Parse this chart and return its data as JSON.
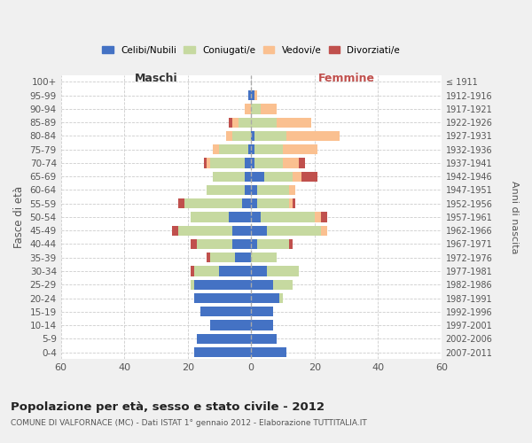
{
  "age_groups": [
    "0-4",
    "5-9",
    "10-14",
    "15-19",
    "20-24",
    "25-29",
    "30-34",
    "35-39",
    "40-44",
    "45-49",
    "50-54",
    "55-59",
    "60-64",
    "65-69",
    "70-74",
    "75-79",
    "80-84",
    "85-89",
    "90-94",
    "95-99",
    "100+"
  ],
  "birth_years": [
    "2007-2011",
    "2002-2006",
    "1997-2001",
    "1992-1996",
    "1987-1991",
    "1982-1986",
    "1977-1981",
    "1972-1976",
    "1967-1971",
    "1962-1966",
    "1957-1961",
    "1952-1956",
    "1947-1951",
    "1942-1946",
    "1937-1941",
    "1932-1936",
    "1927-1931",
    "1922-1926",
    "1917-1921",
    "1912-1916",
    "≤ 1911"
  ],
  "male": {
    "celibi": [
      18,
      17,
      13,
      16,
      18,
      18,
      10,
      5,
      6,
      6,
      7,
      3,
      2,
      2,
      2,
      1,
      0,
      0,
      0,
      1,
      0
    ],
    "coniugati": [
      0,
      0,
      0,
      0,
      0,
      1,
      8,
      8,
      11,
      17,
      12,
      18,
      12,
      10,
      11,
      9,
      6,
      4,
      0,
      0,
      0
    ],
    "vedovi": [
      0,
      0,
      0,
      0,
      0,
      0,
      0,
      0,
      0,
      0,
      0,
      0,
      0,
      0,
      1,
      2,
      2,
      2,
      2,
      0,
      0
    ],
    "divorziati": [
      0,
      0,
      0,
      0,
      0,
      0,
      1,
      1,
      2,
      2,
      0,
      2,
      0,
      0,
      1,
      0,
      0,
      1,
      0,
      0,
      0
    ]
  },
  "female": {
    "nubili": [
      11,
      8,
      7,
      7,
      9,
      7,
      5,
      0,
      2,
      5,
      3,
      2,
      2,
      4,
      1,
      1,
      1,
      0,
      0,
      1,
      0
    ],
    "coniugate": [
      0,
      0,
      0,
      0,
      1,
      6,
      10,
      8,
      10,
      17,
      17,
      10,
      10,
      9,
      9,
      9,
      10,
      8,
      3,
      0,
      0
    ],
    "vedove": [
      0,
      0,
      0,
      0,
      0,
      0,
      0,
      0,
      0,
      2,
      2,
      1,
      2,
      3,
      5,
      11,
      17,
      11,
      5,
      1,
      0
    ],
    "divorziate": [
      0,
      0,
      0,
      0,
      0,
      0,
      0,
      0,
      1,
      0,
      2,
      1,
      0,
      5,
      2,
      0,
      0,
      0,
      0,
      0,
      0
    ]
  },
  "colors": {
    "celibi": "#4472c4",
    "coniugati": "#c6d9a0",
    "vedovi": "#fac090",
    "divorziati": "#c0504d"
  },
  "xlim": [
    -60,
    60
  ],
  "xticks": [
    -60,
    -40,
    -20,
    0,
    20,
    40,
    60
  ],
  "xticklabels": [
    "60",
    "40",
    "20",
    "0",
    "20",
    "40",
    "60"
  ],
  "title": "Popolazione per età, sesso e stato civile - 2012",
  "subtitle": "COMUNE DI VALFORNACE (MC) - Dati ISTAT 1° gennaio 2012 - Elaborazione TUTTITALIA.IT",
  "ylabel": "Fasce di età",
  "ylabel2": "Anni di nascita",
  "legend_labels": [
    "Celibi/Nubili",
    "Coniugati/e",
    "Vedovi/e",
    "Divorziati/e"
  ],
  "maschi_label": "Maschi",
  "femmine_label": "Femmine",
  "bg_color": "#f0f0f0",
  "plot_bg_color": "#ffffff",
  "grid_color": "#cccccc",
  "text_color": "#555555"
}
